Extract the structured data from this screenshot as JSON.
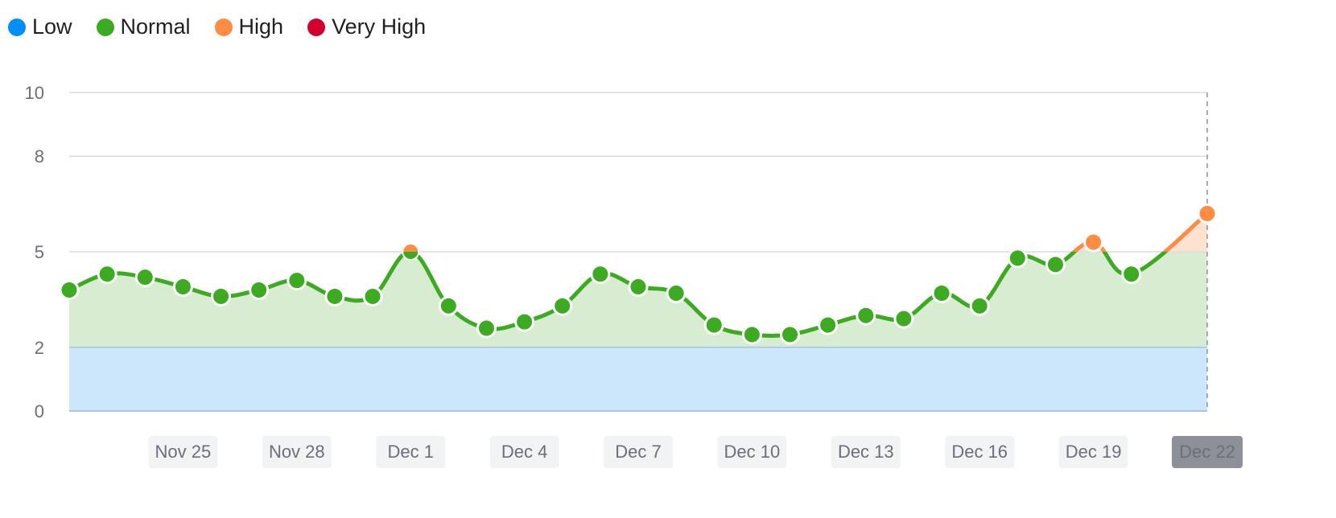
{
  "legend": [
    {
      "label": "Low",
      "color": "#008ff8"
    },
    {
      "label": "Normal",
      "color": "#3cab21"
    },
    {
      "label": "High",
      "color": "#ff8c43"
    },
    {
      "label": "Very High",
      "color": "#d1002f"
    }
  ],
  "chart_data": {
    "type": "line",
    "ylim": [
      0,
      10
    ],
    "y_ticks": [
      0,
      2,
      5,
      8,
      10
    ],
    "x_tick_labels": [
      "Nov 25",
      "Nov 28",
      "Dec 1",
      "Dec 4",
      "Dec 7",
      "Dec 10",
      "Dec 13",
      "Dec 16",
      "Dec 19",
      "Dec 22"
    ],
    "highlighted_x_label": "Dec 22",
    "bands": [
      {
        "name": "Low",
        "from": 0,
        "to": 2,
        "color": "#cce7fb"
      },
      {
        "name": "Normal",
        "from": 2,
        "to": 5,
        "color": "#d8ecd2"
      },
      {
        "name": "High",
        "from": 5,
        "to": 8,
        "color": "#ffe1cf"
      }
    ],
    "series": [
      {
        "x": [
          "Nov 22",
          "Nov 23",
          "Nov 24",
          "Nov 25",
          "Nov 26",
          "Nov 27",
          "Nov 28",
          "Nov 29",
          "Nov 30",
          "Dec 1",
          "Dec 2",
          "Dec 3",
          "Dec 4",
          "Dec 5",
          "Dec 6",
          "Dec 7",
          "Dec 8",
          "Dec 9",
          "Dec 10",
          "Dec 11",
          "Dec 12",
          "Dec 13",
          "Dec 14",
          "Dec 15",
          "Dec 16",
          "Dec 17",
          "Dec 18",
          "Dec 19",
          "Dec 20",
          "Dec 21",
          "Dec 22"
        ],
        "values": [
          3.8,
          4.3,
          4.2,
          3.9,
          3.6,
          3.8,
          4.1,
          3.6,
          3.6,
          5.0,
          3.3,
          2.6,
          2.8,
          3.3,
          4.3,
          3.9,
          3.7,
          2.7,
          2.4,
          2.4,
          2.7,
          3.0,
          2.9,
          3.7,
          3.3,
          4.8,
          4.6,
          5.3,
          4.3,
          null,
          6.2
        ]
      }
    ],
    "colors": {
      "normal": "#3cab21",
      "high": "#ff8c43"
    }
  }
}
